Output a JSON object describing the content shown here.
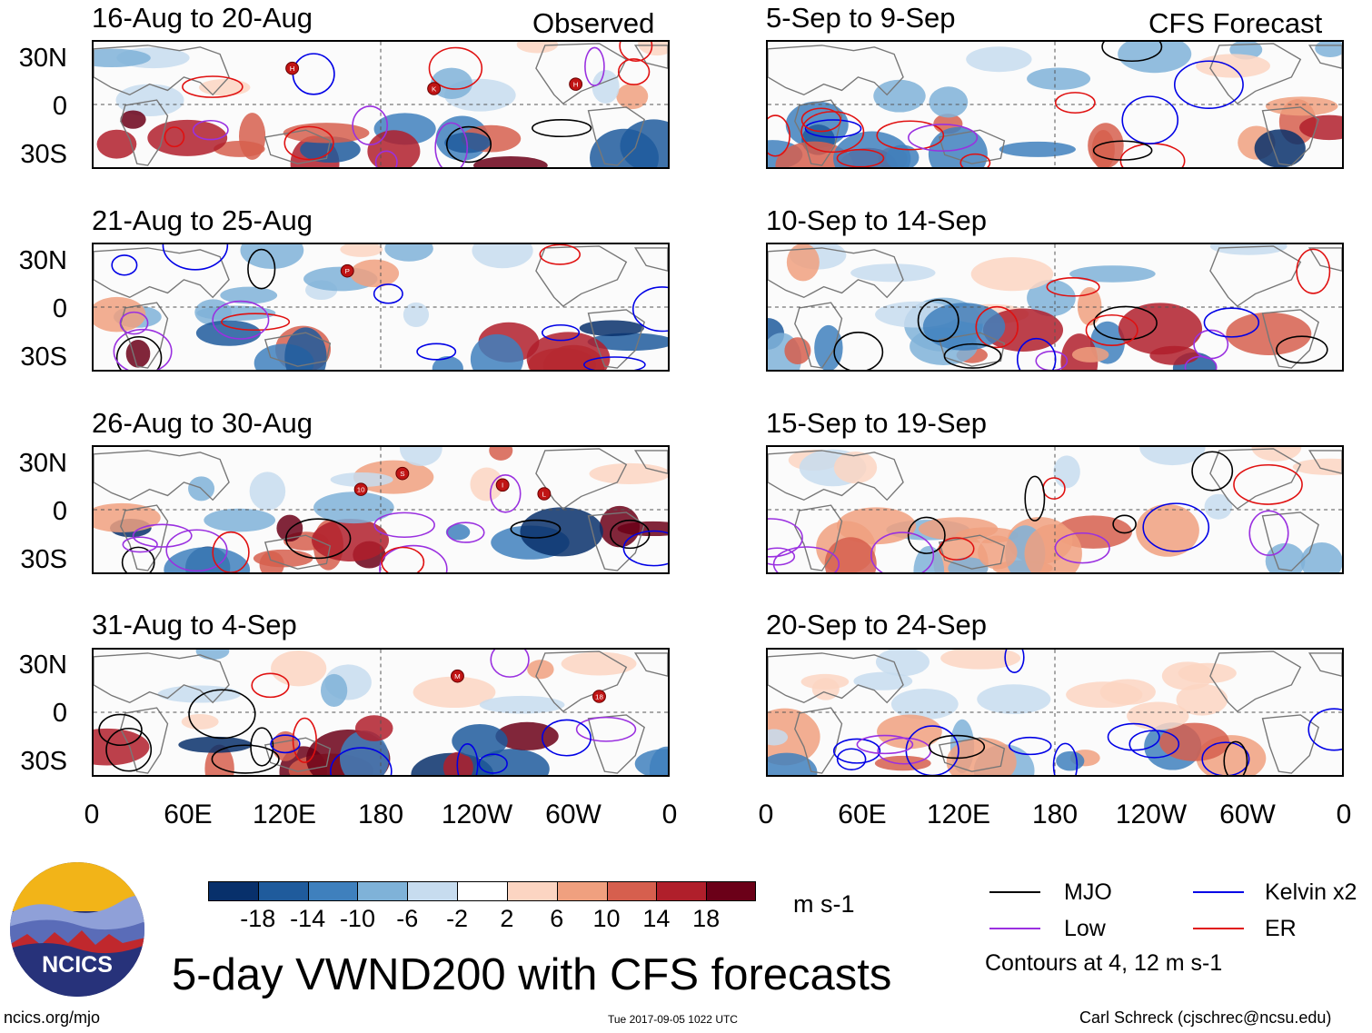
{
  "panels_left": [
    {
      "title": "16-Aug to 20-Aug",
      "corner": "Observed"
    },
    {
      "title": "21-Aug to 25-Aug",
      "corner": ""
    },
    {
      "title": "26-Aug to 30-Aug",
      "corner": ""
    },
    {
      "title": "31-Aug to 4-Sep",
      "corner": ""
    }
  ],
  "panels_right": [
    {
      "title": "5-Sep to 9-Sep",
      "corner": "CFS Forecast"
    },
    {
      "title": "10-Sep to 14-Sep",
      "corner": ""
    },
    {
      "title": "15-Sep to 19-Sep",
      "corner": ""
    },
    {
      "title": "20-Sep to 24-Sep",
      "corner": ""
    }
  ],
  "lat_labels": [
    "30N",
    "0",
    "30S"
  ],
  "lon_labels": [
    "0",
    "60E",
    "120E",
    "180",
    "120W",
    "60W",
    "0"
  ],
  "colorbar": {
    "ticks": [
      "-18",
      "-14",
      "-10",
      "-6",
      "-2",
      "2",
      "6",
      "10",
      "14",
      "18"
    ],
    "units": "m s-1",
    "colors": [
      "#08306b",
      "#1f5b9c",
      "#3f80bd",
      "#7fb2d8",
      "#c7dcef",
      "#ffffff",
      "#fcd5c2",
      "#f0a07f",
      "#d65f4e",
      "#b01f2b",
      "#6b0018"
    ]
  },
  "legend": {
    "items": [
      {
        "label": "MJO",
        "color": "#000000"
      },
      {
        "label": "Kelvin x2",
        "color": "#0000e6"
      },
      {
        "label": "Low",
        "color": "#9a30e0"
      },
      {
        "label": "ER",
        "color": "#e01010"
      }
    ],
    "note": "Contours at 4, 12 m s-1"
  },
  "storm_markers": [
    {
      "panel": 0,
      "letter": "H"
    },
    {
      "panel": 0,
      "letter": "K"
    },
    {
      "panel": 0,
      "letter": "H"
    },
    {
      "panel": 1,
      "letter": "P"
    },
    {
      "panel": 2,
      "letter": "S"
    },
    {
      "panel": 2,
      "letter": "L"
    },
    {
      "panel": 2,
      "letter": "10"
    },
    {
      "panel": 2,
      "letter": "I"
    },
    {
      "panel": 3,
      "letter": "M"
    },
    {
      "panel": 3,
      "letter": "18"
    }
  ],
  "logo_text": "NCICS",
  "main_title": "5-day VWND200 with CFS forecasts",
  "footer": {
    "url": "ncics.org/mjo",
    "timestamp": "Tue 2017-09-05 1022 UTC",
    "author": "Carl Schreck (cjschrec@ncsu.edu)"
  }
}
